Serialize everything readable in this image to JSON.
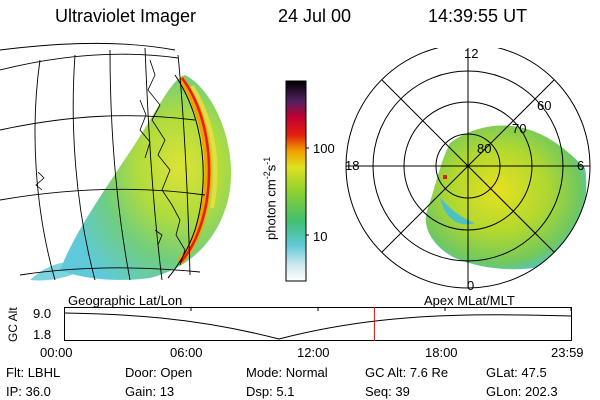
{
  "header": {
    "instrument": "Ultraviolet Imager",
    "date": "24 Jul 00",
    "time": "14:39:55 UT"
  },
  "colorbar": {
    "label": "photon cm",
    "label_sup1": "-2",
    "label_s": "s",
    "label_sup2": "-1",
    "ticks": [
      "100",
      "10"
    ]
  },
  "geo_panel": {
    "label": "Geographic Lat/Lon"
  },
  "polar_panel": {
    "label": "Apex MLat/MLT",
    "mlt_labels": [
      "12",
      "18",
      "6",
      "0"
    ],
    "lat_labels": [
      "60",
      "70",
      "80"
    ]
  },
  "timeline": {
    "ylabel": "GC Alt",
    "y_ticks": [
      "9.0",
      "1.8"
    ],
    "x_ticks": [
      "00:00",
      "06:00",
      "12:00",
      "18:00",
      "23:59"
    ],
    "current_time_fraction": 0.611
  },
  "status": {
    "rows": [
      [
        {
          "k": "Flt:",
          "v": "LBHL"
        },
        {
          "k": "Door:",
          "v": "Open"
        },
        {
          "k": "Mode:",
          "v": "Normal"
        },
        {
          "k": "GC Alt:",
          "v": "7.6 Re"
        },
        {
          "k": "GLat:",
          "v": "47.5"
        }
      ],
      [
        {
          "k": "IP:",
          "v": "36.0"
        },
        {
          "k": "Gain:",
          "v": "13"
        },
        {
          "k": "Dsp:",
          "v": "5.1"
        },
        {
          "k": "Seq:",
          "v": "39"
        },
        {
          "k": "GLon:",
          "v": "202.3"
        }
      ]
    ]
  }
}
